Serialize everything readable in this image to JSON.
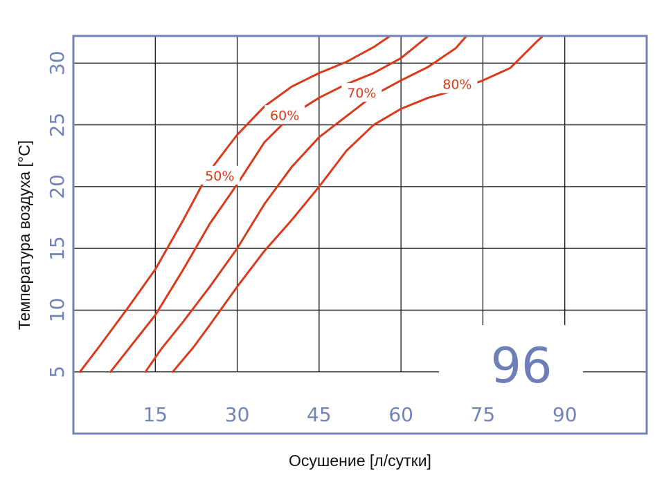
{
  "chart_data": {
    "type": "line",
    "xlabel": "Осушение [л/сутки]",
    "ylabel": "Температура воздуха [°C]",
    "x_ticks": [
      "15",
      "30",
      "45",
      "60",
      "75",
      "90"
    ],
    "y_ticks": [
      "5",
      "10",
      "15",
      "20",
      "25",
      "30"
    ],
    "xlim": [
      0,
      105
    ],
    "ylim": [
      0,
      32.2
    ],
    "grid": true,
    "badge": "96",
    "colors": {
      "series": "#d93a1c",
      "frame": "#7283b8",
      "grid": "#111111"
    },
    "series": [
      {
        "name": "50%",
        "label_at": [
          26.8,
          20.9
        ],
        "points": [
          [
            1.2,
            5
          ],
          [
            5,
            7.2
          ],
          [
            10,
            10.2
          ],
          [
            15,
            13.3
          ],
          [
            20,
            17.2
          ],
          [
            25,
            21.3
          ],
          [
            30,
            24.2
          ],
          [
            35,
            26.5
          ],
          [
            40,
            28.1
          ],
          [
            45,
            29.2
          ],
          [
            50,
            30.1
          ],
          [
            55,
            31.3
          ],
          [
            58,
            32.2
          ]
        ]
      },
      {
        "name": "60%",
        "label_at": [
          38.7,
          25.8
        ],
        "points": [
          [
            6.8,
            5
          ],
          [
            10,
            6.8
          ],
          [
            15,
            9.6
          ],
          [
            20,
            13.2
          ],
          [
            25,
            17.0
          ],
          [
            30,
            20.2
          ],
          [
            35,
            23.6
          ],
          [
            40,
            25.8
          ],
          [
            45,
            27.2
          ],
          [
            50,
            28.3
          ],
          [
            55,
            29.2
          ],
          [
            60,
            30.4
          ],
          [
            65,
            32.2
          ]
        ]
      },
      {
        "name": "70%",
        "label_at": [
          52.8,
          27.6
        ],
        "points": [
          [
            13.2,
            5
          ],
          [
            16,
            6.8
          ],
          [
            20,
            9.0
          ],
          [
            25,
            11.9
          ],
          [
            30,
            15.0
          ],
          [
            35,
            18.6
          ],
          [
            40,
            21.6
          ],
          [
            45,
            24.0
          ],
          [
            50,
            25.7
          ],
          [
            55,
            27.4
          ],
          [
            60,
            28.6
          ],
          [
            65,
            29.7
          ],
          [
            70,
            31.2
          ],
          [
            72,
            32.2
          ]
        ]
      },
      {
        "name": "80%",
        "label_at": [
          70.3,
          28.3
        ],
        "points": [
          [
            18.2,
            5
          ],
          [
            22,
            7.0
          ],
          [
            25,
            8.8
          ],
          [
            30,
            11.9
          ],
          [
            35,
            14.8
          ],
          [
            40,
            17.3
          ],
          [
            45,
            20.0
          ],
          [
            50,
            22.9
          ],
          [
            55,
            25.0
          ],
          [
            60,
            26.3
          ],
          [
            65,
            27.2
          ],
          [
            70,
            27.8
          ],
          [
            75,
            28.6
          ],
          [
            80,
            29.6
          ],
          [
            85,
            31.8
          ],
          [
            86,
            32.2
          ]
        ]
      }
    ]
  }
}
